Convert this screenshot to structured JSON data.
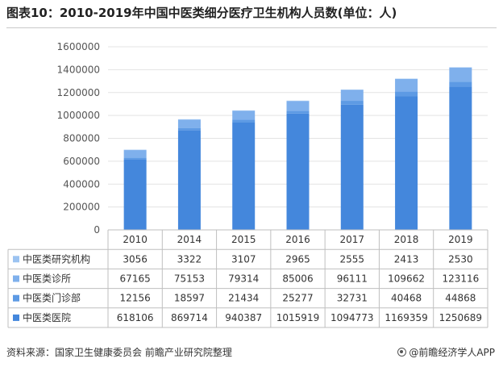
{
  "header": {
    "title": "图表10：2010-2019年中国中医类细分医疗卫生机构人员数(单位：人)"
  },
  "footer": {
    "source": "资料来源：国家卫生健康委员会 前瞻产业研究院整理",
    "brand": "@前瞻经济学人APP"
  },
  "chart_data": {
    "type": "bar",
    "stacked": true,
    "categories": [
      "2010",
      "2014",
      "2015",
      "2016",
      "2017",
      "2018",
      "2019"
    ],
    "ylim": [
      0,
      1600000
    ],
    "yticks": [
      "0",
      "200000",
      "400000",
      "600000",
      "800000",
      "1000000",
      "1200000",
      "1400000",
      "1600000"
    ],
    "ytick_values": [
      0,
      200000,
      400000,
      600000,
      800000,
      1000000,
      1200000,
      1400000,
      1600000
    ],
    "grid": true,
    "legend": "data-table",
    "series": [
      {
        "name": "中医类医院",
        "color": "#4487dc",
        "values": [
          618106,
          869714,
          940387,
          1015919,
          1094773,
          1169359,
          1250689
        ]
      },
      {
        "name": "中医类门诊部",
        "color": "#5d9ae4",
        "values": [
          12156,
          18597,
          21434,
          25277,
          32731,
          40468,
          44868
        ]
      },
      {
        "name": "中医类诊所",
        "color": "#7fb0ec",
        "values": [
          67165,
          75153,
          79314,
          85006,
          96111,
          109662,
          123116
        ]
      },
      {
        "name": "中医类研究机构",
        "color": "#9cc3f1",
        "values": [
          3056,
          3322,
          3107,
          2965,
          2555,
          2413,
          2530
        ]
      }
    ],
    "table_rows": [
      {
        "label": "中医类研究机构",
        "color": "#9cc3f1",
        "cells": [
          "3056",
          "3322",
          "3107",
          "2965",
          "2555",
          "2413",
          "2530"
        ]
      },
      {
        "label": "中医类诊所",
        "color": "#7fb0ec",
        "cells": [
          "67165",
          "75153",
          "79314",
          "85006",
          "96111",
          "109662",
          "123116"
        ]
      },
      {
        "label": "中医类门诊部",
        "color": "#5d9ae4",
        "cells": [
          "12156",
          "18597",
          "21434",
          "25277",
          "32731",
          "40468",
          "44868"
        ]
      },
      {
        "label": "中医类医院",
        "color": "#4487dc",
        "cells": [
          "618106",
          "869714",
          "940387",
          "1015919",
          "1094773",
          "1169359",
          "1250689"
        ]
      }
    ]
  }
}
